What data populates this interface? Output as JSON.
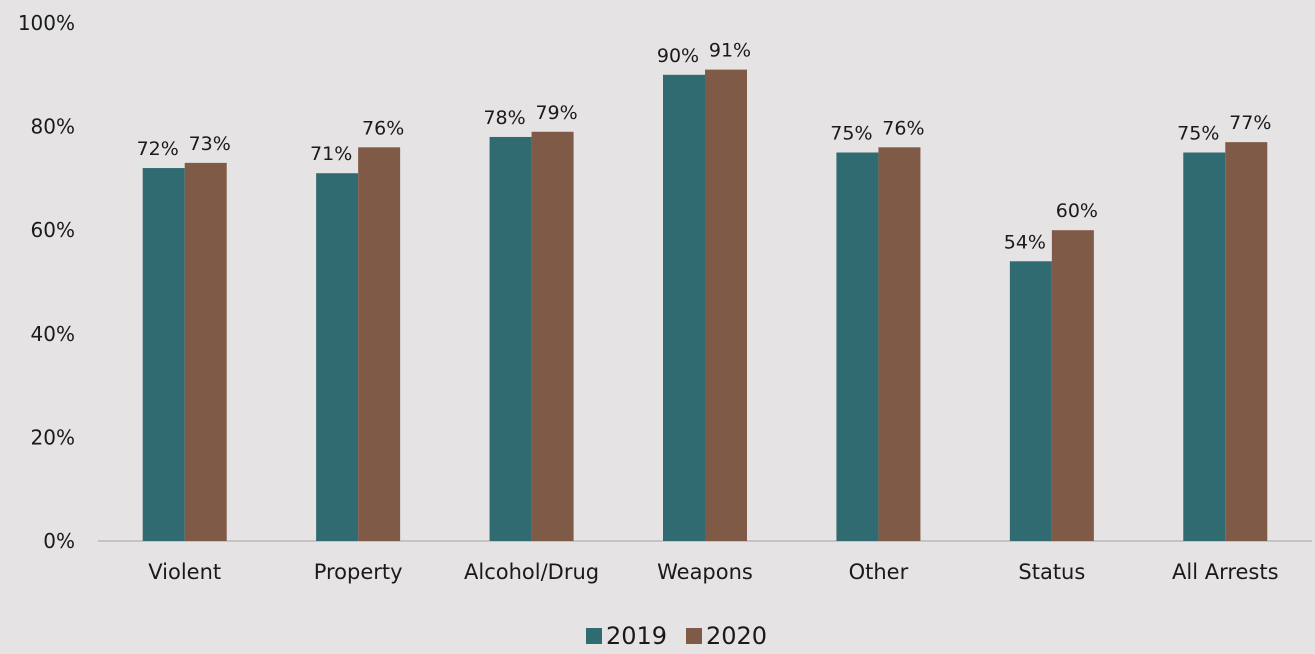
{
  "chart_data": {
    "type": "bar",
    "categories": [
      "Violent",
      "Property",
      "Alcohol/Drug",
      "Weapons",
      "Other",
      "Status",
      "All Arrests"
    ],
    "series": [
      {
        "name": "2019",
        "values": [
          72,
          71,
          78,
          90,
          75,
          54,
          75
        ],
        "labels": [
          "72%",
          "71%",
          "78%",
          "90%",
          "75%",
          "54%",
          "75%"
        ]
      },
      {
        "name": "2020",
        "values": [
          73,
          76,
          79,
          91,
          76,
          60,
          77
        ],
        "labels": [
          "73%",
          "76%",
          "79%",
          "91%",
          "76%",
          "60%",
          "77%"
        ]
      }
    ],
    "ylim": [
      0,
      100
    ],
    "yticks": [
      "0%",
      "20%",
      "40%",
      "60%",
      "80%",
      "100%"
    ],
    "colors": {
      "2019": "#2f6b70",
      "2020": "#7f5a47",
      "background": "#e5e3e3",
      "axis": "#b9b9b9"
    },
    "grid": false,
    "legend_position": "bottom"
  }
}
